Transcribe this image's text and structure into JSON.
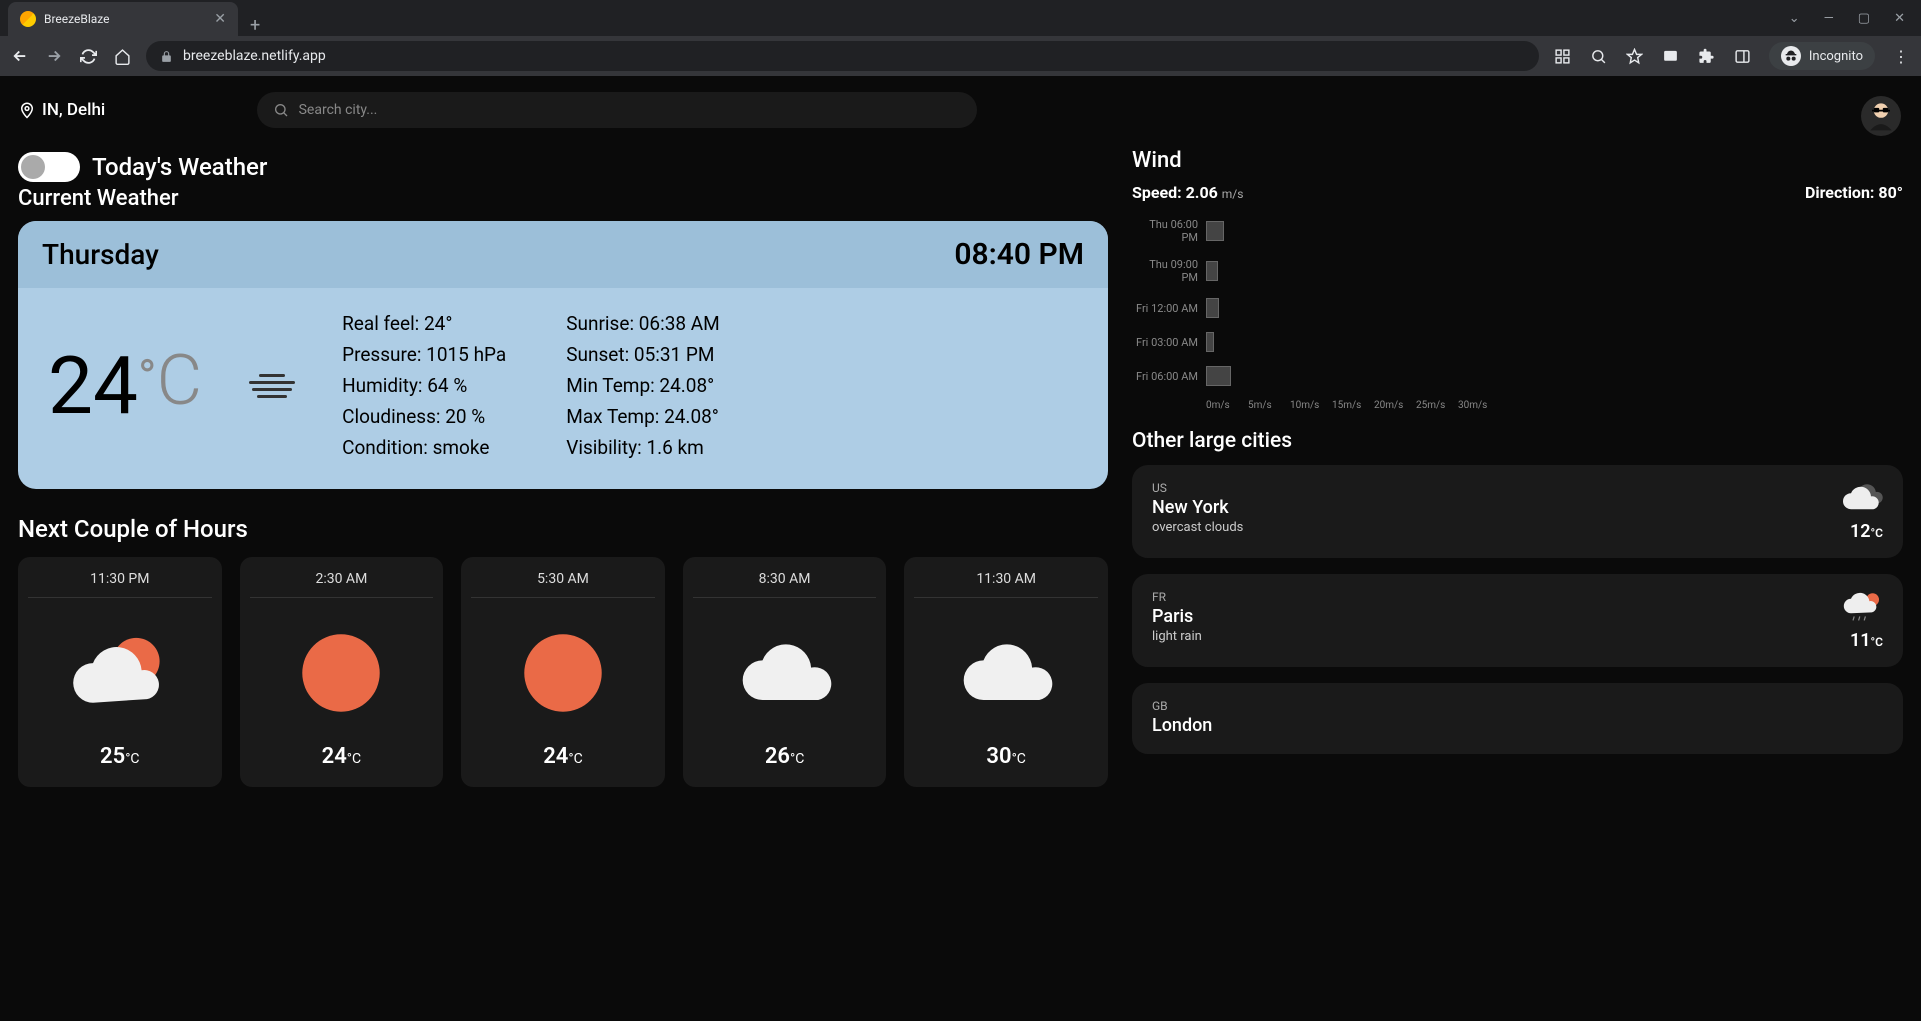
{
  "browser": {
    "tab_title": "BreezeBlaze",
    "url": "breezeblaze.netlify.app",
    "incognito_label": "Incognito"
  },
  "header": {
    "location": "IN, Delhi",
    "search_placeholder": "Search city..."
  },
  "toggle_label": "Today's Weather",
  "current_section_title": "Current Weather",
  "current": {
    "day": "Thursday",
    "time": "08:40 PM",
    "temp_value": "24",
    "temp_unit": "C",
    "details_left": {
      "real_feel": "Real feel: 24°",
      "pressure": "Pressure: 1015 hPa",
      "humidity": "Humidity: 64 %",
      "cloudiness": "Cloudiness: 20 %",
      "condition": "Condition: smoke"
    },
    "details_right": {
      "sunrise": "Sunrise: 06:38 AM",
      "sunset": "Sunset: 05:31 PM",
      "min_temp": "Min Temp: 24.08°",
      "max_temp": "Max Temp: 24.08°",
      "visibility": "Visibility: 1.6 km"
    }
  },
  "hours_title": "Next Couple of Hours",
  "hours": [
    {
      "time": "11:30 PM",
      "temp": "25",
      "icon": "cloud-sun"
    },
    {
      "time": "2:30 AM",
      "temp": "24",
      "icon": "sun"
    },
    {
      "time": "5:30 AM",
      "temp": "24",
      "icon": "sun"
    },
    {
      "time": "8:30 AM",
      "temp": "26",
      "icon": "cloud"
    },
    {
      "time": "11:30 AM",
      "temp": "30",
      "icon": "cloud"
    }
  ],
  "wind": {
    "title": "Wind",
    "speed_label": "Speed: 2.06",
    "speed_unit": "m/s",
    "direction_label": "Direction: 80°",
    "rows": [
      {
        "label": "Thu 06:00 PM",
        "value": 2.2
      },
      {
        "label": "Thu 09:00 PM",
        "value": 1.4
      },
      {
        "label": "Fri 12:00 AM",
        "value": 1.6
      },
      {
        "label": "Fri 03:00 AM",
        "value": 1.0
      },
      {
        "label": "Fri 06:00 AM",
        "value": 3.0
      }
    ],
    "axis": [
      "0m/s",
      "5m/s",
      "10m/s",
      "15m/s",
      "20m/s",
      "25m/s",
      "30m/s"
    ],
    "axis_max": 30
  },
  "cities_title": "Other large cities",
  "cities": [
    {
      "country": "US",
      "name": "New York",
      "desc": "overcast clouds",
      "temp": "12",
      "icon": "cloud-gray"
    },
    {
      "country": "FR",
      "name": "Paris",
      "desc": "light rain",
      "temp": "11",
      "icon": "rain-sun"
    },
    {
      "country": "GB",
      "name": "London",
      "desc": "",
      "temp": "",
      "icon": ""
    }
  ],
  "colors": {
    "accent_orange": "#ea6a47",
    "card_blue": "#aecde5",
    "card_blue_header": "#9cbfd9",
    "dark_card": "#1a1a1a"
  }
}
